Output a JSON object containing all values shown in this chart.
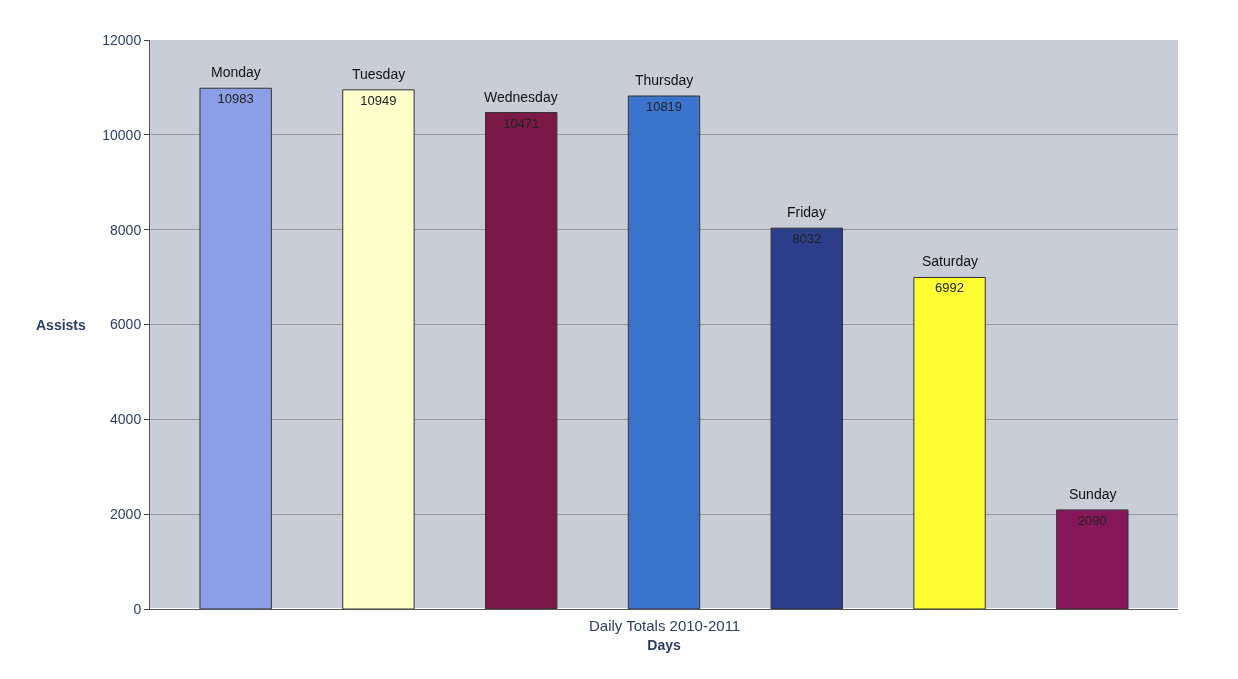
{
  "chart_data": {
    "type": "bar",
    "xlabel": "Days",
    "ylabel": "Assists",
    "annotations": [
      "Daily Totals 2010-2011"
    ],
    "categories": [
      "Monday",
      "Tuesday",
      "Wednesday",
      "Thursday",
      "Friday",
      "Saturday",
      "Sunday"
    ],
    "values": [
      10983,
      10949,
      10471,
      10819,
      8032,
      6992,
      2090
    ],
    "colors": [
      "#8c9fe6",
      "#ffffcc",
      "#7a1848",
      "#3a74cc",
      "#2c3e8c",
      "#ffff33",
      "#86185a"
    ],
    "data_labels": true,
    "ylim": [
      0,
      12000
    ],
    "yticks": [
      0,
      2000,
      4000,
      6000,
      8000,
      10000,
      12000
    ],
    "grid": "y"
  }
}
